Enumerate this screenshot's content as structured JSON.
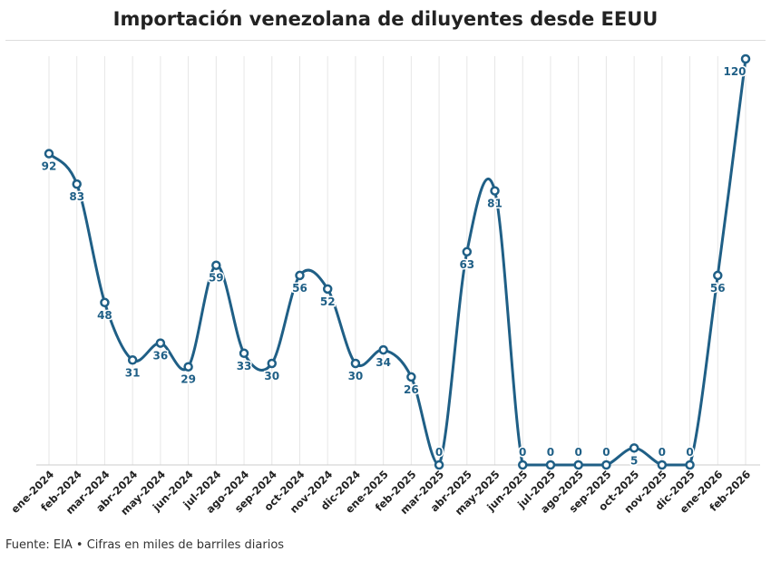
{
  "title": "Importación venezolana de diluyentes desde EEUU",
  "source": "Fuente: EIA • Cifras en miles de barriles diarios",
  "colors": {
    "line": "#1f5f86",
    "label": "#1f5f86",
    "grid": "#e6e6e6",
    "text": "#222222"
  },
  "chart_data": {
    "type": "line",
    "title": "Importación venezolana de diluyentes desde EEUU",
    "xlabel": "",
    "ylabel": "",
    "ylim": [
      0,
      120
    ],
    "grid": "vertical",
    "legend": "none",
    "categories": [
      "ene-2024",
      "feb-2024",
      "mar-2024",
      "abr-2024",
      "may-2024",
      "jun-2024",
      "jul-2024",
      "ago-2024",
      "sep-2024",
      "oct-2024",
      "nov-2024",
      "dic-2024",
      "ene-2025",
      "feb-2025",
      "mar-2025",
      "abr-2025",
      "may-2025",
      "jun-2025",
      "jul-2025",
      "ago-2025",
      "sep-2025",
      "oct-2025",
      "nov-2025",
      "dic-2025",
      "ene-2026",
      "feb-2026"
    ],
    "values": [
      92,
      83,
      48,
      31,
      36,
      29,
      59,
      33,
      30,
      56,
      52,
      30,
      34,
      26,
      0,
      63,
      81,
      0,
      0,
      0,
      0,
      5,
      0,
      0,
      56,
      120
    ]
  }
}
